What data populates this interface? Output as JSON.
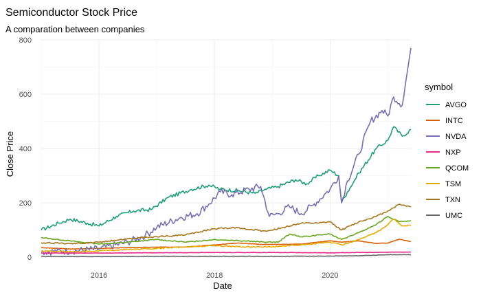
{
  "chart_data": {
    "type": "line",
    "title": "Semiconductor Stock Price",
    "subtitle": "A comparation between companies",
    "xlabel": "Date",
    "ylabel": "Close Price",
    "xlim": [
      2015.0,
      2021.4
    ],
    "ylim": [
      0,
      800
    ],
    "x_ticks": [
      2016,
      2018,
      2020
    ],
    "y_ticks": [
      0,
      200,
      400,
      600,
      800
    ],
    "grid": true,
    "legend": {
      "title": "symbol",
      "position": "right"
    },
    "series": [
      {
        "name": "AVGO",
        "color": "#1B9E77",
        "points": [
          [
            2015.0,
            100
          ],
          [
            2015.3,
            125
          ],
          [
            2015.5,
            140
          ],
          [
            2015.8,
            125
          ],
          [
            2016.0,
            115
          ],
          [
            2016.3,
            150
          ],
          [
            2016.6,
            170
          ],
          [
            2016.9,
            175
          ],
          [
            2017.2,
            220
          ],
          [
            2017.6,
            250
          ],
          [
            2017.9,
            265
          ],
          [
            2018.1,
            250
          ],
          [
            2018.4,
            245
          ],
          [
            2018.7,
            235
          ],
          [
            2018.9,
            250
          ],
          [
            2019.1,
            260
          ],
          [
            2019.4,
            285
          ],
          [
            2019.6,
            270
          ],
          [
            2019.8,
            300
          ],
          [
            2020.0,
            320
          ],
          [
            2020.15,
            300
          ],
          [
            2020.2,
            200
          ],
          [
            2020.3,
            240
          ],
          [
            2020.5,
            310
          ],
          [
            2020.8,
            400
          ],
          [
            2021.0,
            430
          ],
          [
            2021.1,
            480
          ],
          [
            2021.25,
            445
          ],
          [
            2021.4,
            470
          ]
        ]
      },
      {
        "name": "INTC",
        "color": "#D95F02",
        "points": [
          [
            2015.0,
            35
          ],
          [
            2015.5,
            30
          ],
          [
            2016.0,
            32
          ],
          [
            2016.5,
            35
          ],
          [
            2017.0,
            37
          ],
          [
            2017.5,
            37
          ],
          [
            2018.0,
            45
          ],
          [
            2018.4,
            52
          ],
          [
            2018.8,
            47
          ],
          [
            2019.0,
            47
          ],
          [
            2019.5,
            48
          ],
          [
            2020.0,
            60
          ],
          [
            2020.2,
            55
          ],
          [
            2020.5,
            60
          ],
          [
            2020.8,
            50
          ],
          [
            2021.0,
            52
          ],
          [
            2021.2,
            66
          ],
          [
            2021.4,
            57
          ]
        ]
      },
      {
        "name": "NVDA",
        "color": "#7570B3",
        "points": [
          [
            2015.0,
            20
          ],
          [
            2015.5,
            22
          ],
          [
            2016.0,
            30
          ],
          [
            2016.5,
            55
          ],
          [
            2016.8,
            80
          ],
          [
            2017.0,
            110
          ],
          [
            2017.4,
            145
          ],
          [
            2017.7,
            160
          ],
          [
            2017.9,
            195
          ],
          [
            2018.1,
            240
          ],
          [
            2018.3,
            230
          ],
          [
            2018.6,
            250
          ],
          [
            2018.8,
            260
          ],
          [
            2018.95,
            150
          ],
          [
            2019.1,
            160
          ],
          [
            2019.3,
            185
          ],
          [
            2019.5,
            160
          ],
          [
            2019.7,
            190
          ],
          [
            2019.9,
            230
          ],
          [
            2020.0,
            250
          ],
          [
            2020.15,
            300
          ],
          [
            2020.2,
            200
          ],
          [
            2020.3,
            280
          ],
          [
            2020.5,
            380
          ],
          [
            2020.7,
            500
          ],
          [
            2020.9,
            540
          ],
          [
            2021.0,
            520
          ],
          [
            2021.1,
            590
          ],
          [
            2021.25,
            560
          ],
          [
            2021.35,
            700
          ],
          [
            2021.4,
            770
          ]
        ]
      },
      {
        "name": "NXP",
        "color": "#E7298A",
        "points": [
          [
            2015.0,
            15
          ],
          [
            2016.0,
            15
          ],
          [
            2017.0,
            16
          ],
          [
            2018.0,
            17
          ],
          [
            2019.0,
            17
          ],
          [
            2020.0,
            16
          ],
          [
            2021.0,
            18
          ],
          [
            2021.4,
            19
          ]
        ]
      },
      {
        "name": "QCOM",
        "color": "#66A61E",
        "points": [
          [
            2015.0,
            72
          ],
          [
            2015.5,
            60
          ],
          [
            2016.0,
            48
          ],
          [
            2016.5,
            55
          ],
          [
            2017.0,
            65
          ],
          [
            2017.5,
            55
          ],
          [
            2018.0,
            65
          ],
          [
            2018.5,
            60
          ],
          [
            2018.9,
            55
          ],
          [
            2019.1,
            55
          ],
          [
            2019.3,
            85
          ],
          [
            2019.5,
            75
          ],
          [
            2020.0,
            85
          ],
          [
            2020.2,
            65
          ],
          [
            2020.5,
            90
          ],
          [
            2020.8,
            120
          ],
          [
            2021.0,
            150
          ],
          [
            2021.2,
            130
          ],
          [
            2021.4,
            135
          ]
        ]
      },
      {
        "name": "TSM",
        "color": "#E6AB02",
        "points": [
          [
            2015.0,
            22
          ],
          [
            2015.5,
            20
          ],
          [
            2016.0,
            23
          ],
          [
            2016.5,
            28
          ],
          [
            2017.0,
            32
          ],
          [
            2017.5,
            38
          ],
          [
            2018.0,
            42
          ],
          [
            2018.5,
            38
          ],
          [
            2019.0,
            38
          ],
          [
            2019.5,
            45
          ],
          [
            2020.0,
            55
          ],
          [
            2020.2,
            45
          ],
          [
            2020.5,
            65
          ],
          [
            2020.8,
            90
          ],
          [
            2021.0,
            120
          ],
          [
            2021.1,
            140
          ],
          [
            2021.25,
            115
          ],
          [
            2021.4,
            118
          ]
        ]
      },
      {
        "name": "TXN",
        "color": "#A6761D",
        "points": [
          [
            2015.0,
            53
          ],
          [
            2015.5,
            50
          ],
          [
            2016.0,
            55
          ],
          [
            2016.5,
            68
          ],
          [
            2017.0,
            75
          ],
          [
            2017.5,
            82
          ],
          [
            2018.0,
            105
          ],
          [
            2018.4,
            108
          ],
          [
            2018.9,
            95
          ],
          [
            2019.2,
            110
          ],
          [
            2019.5,
            125
          ],
          [
            2019.8,
            125
          ],
          [
            2020.0,
            130
          ],
          [
            2020.2,
            100
          ],
          [
            2020.5,
            130
          ],
          [
            2020.8,
            150
          ],
          [
            2021.0,
            170
          ],
          [
            2021.2,
            195
          ],
          [
            2021.4,
            185
          ]
        ]
      },
      {
        "name": "UMC",
        "color": "#666666",
        "points": [
          [
            2015.0,
            3
          ],
          [
            2016.0,
            2
          ],
          [
            2017.0,
            3
          ],
          [
            2018.0,
            3
          ],
          [
            2019.0,
            3
          ],
          [
            2020.0,
            4
          ],
          [
            2020.5,
            5
          ],
          [
            2021.0,
            9
          ],
          [
            2021.4,
            9
          ]
        ]
      }
    ]
  }
}
